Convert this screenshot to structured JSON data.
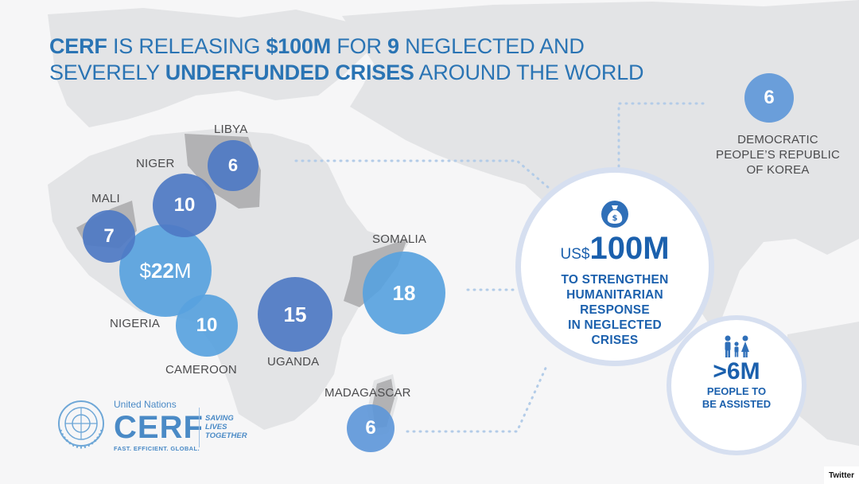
{
  "headline": {
    "line1": [
      {
        "text": "CERF",
        "bold": true
      },
      {
        "text": " IS RELEASING ",
        "bold": false
      },
      {
        "text": "$100M",
        "bold": true
      },
      {
        "text": " FOR ",
        "bold": false
      },
      {
        "text": "9",
        "bold": true
      },
      {
        "text": " NEGLECTED AND",
        "bold": false
      }
    ],
    "line2": [
      {
        "text": "SEVERELY ",
        "bold": false
      },
      {
        "text": "UNDERFUNDED CRISES",
        "bold": true
      },
      {
        "text": " AROUND THE WORLD",
        "bold": false
      }
    ]
  },
  "countries": {
    "libya": {
      "label": "LIBYA",
      "value": "6"
    },
    "niger": {
      "label": "NIGER",
      "value": "10"
    },
    "mali": {
      "label": "MALI",
      "value": "7"
    },
    "nigeria": {
      "label": "NIGERIA",
      "value_prefix": "$",
      "value_main": "22",
      "value_suffix": "M"
    },
    "cameroon": {
      "label": "CAMEROON",
      "value": "10"
    },
    "uganda": {
      "label": "UGANDA",
      "value": "15"
    },
    "somalia": {
      "label": "SOMALIA",
      "value": "18"
    },
    "madagascar": {
      "label": "MADAGASCAR",
      "value": "6"
    },
    "dprk": {
      "label_lines": [
        "DEMOCRATIC",
        "PEOPLE’S REPUBLIC",
        "OF KOREA"
      ],
      "value": "6"
    }
  },
  "summary": {
    "currency": "US$",
    "amount": "100M",
    "lines": [
      "TO STRENGTHEN",
      "HUMANITARIAN",
      "RESPONSE",
      "IN NEGLECTED",
      "CRISES"
    ]
  },
  "people": {
    "amount": ">6M",
    "lines": [
      "PEOPLE TO",
      "BE ASSISTED"
    ]
  },
  "logo": {
    "org": "United Nations",
    "name": "CERF",
    "tagline": "FAST. EFFICIENT. GLOBAL.",
    "slogan_lines": [
      "SAVING",
      "LIVES",
      "TOGETHER"
    ]
  },
  "source_badge": "Twitter",
  "colors": {
    "title_blue": "#2a74b4",
    "bubble_dark": "#4e7ac4",
    "bubble_light": "#58a2de",
    "label_gray": "#4b4b4d",
    "land": "#e3e4e6",
    "highlight_land": "#b2b2b4",
    "ring": "#d6dff0",
    "summary_blue": "#1b60ad"
  },
  "icons": [
    "money-bag-icon",
    "people-icon",
    "un-emblem-icon"
  ]
}
